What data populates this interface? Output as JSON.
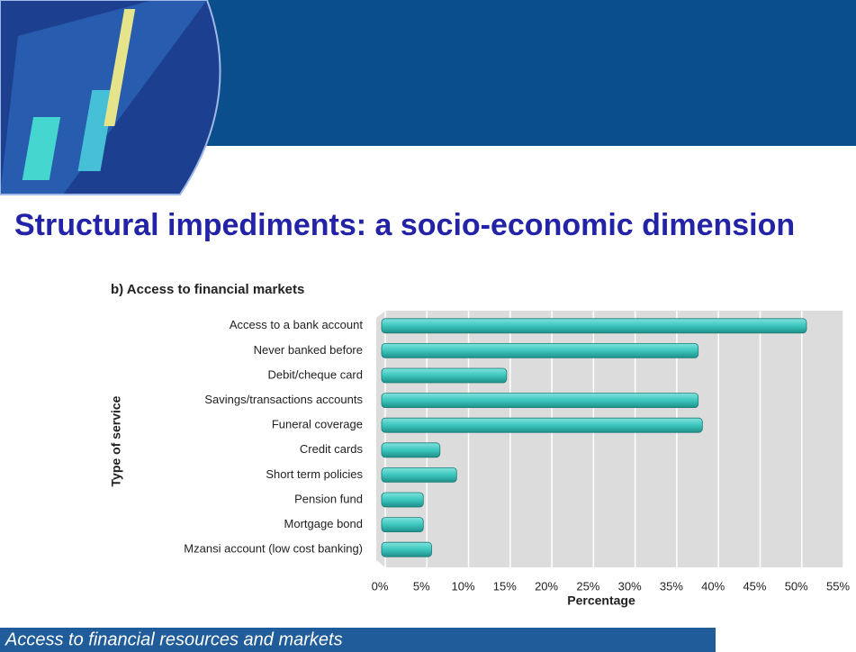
{
  "slide": {
    "title": "Structural impediments: a socio-economic dimension",
    "footer": "Access to financial resources and markets"
  },
  "chart_data": {
    "type": "bar",
    "orientation": "horizontal",
    "title": "b) Access to financial markets",
    "x_label": "Percentage",
    "y_label": "Type of service",
    "categories": [
      "Access to a bank account",
      "Never banked before",
      "Debit/cheque card",
      "Savings/transactions accounts",
      "Funeral coverage",
      "Credit cards",
      "Short term policies",
      "Pension fund",
      "Mortgage bond",
      "Mzansi account (low cost banking)"
    ],
    "values": [
      51,
      38,
      15,
      38,
      38.5,
      7,
      9,
      5,
      5,
      6
    ],
    "color": "#3cc6be",
    "xlim": [
      0,
      55
    ],
    "xticks": [
      {
        "value": 0,
        "label": "0%"
      },
      {
        "value": 5,
        "label": "5%"
      },
      {
        "value": 10,
        "label": "10%"
      },
      {
        "value": 15,
        "label": "15%"
      },
      {
        "value": 20,
        "label": "20%"
      },
      {
        "value": 25,
        "label": "25%"
      },
      {
        "value": 30,
        "label": "30%"
      },
      {
        "value": 35,
        "label": "35%"
      },
      {
        "value": 40,
        "label": "40%"
      },
      {
        "value": 45,
        "label": "45%"
      },
      {
        "value": 50,
        "label": "50%"
      },
      {
        "value": 55,
        "label": "55%"
      }
    ],
    "grid": true
  }
}
